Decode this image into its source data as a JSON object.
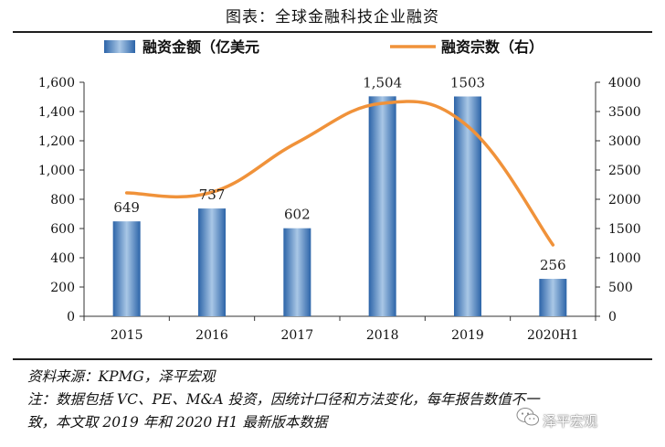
{
  "figure_title": "图表：全球金融科技企业融资",
  "chart_data": {
    "type": "bar",
    "categories": [
      "2015",
      "2016",
      "2017",
      "2018",
      "2019",
      "2020H1"
    ],
    "series": [
      {
        "name": "融资金额（亿美元",
        "type": "bar",
        "axis": "left",
        "values": [
          649,
          737,
          602,
          1504,
          1503,
          256
        ],
        "labels": [
          "649",
          "737",
          "602",
          "1,504",
          "1503",
          "256"
        ],
        "color": "#3f7fbf"
      },
      {
        "name": "融资宗数（右）",
        "type": "line",
        "axis": "right",
        "values": [
          2110,
          2120,
          2970,
          3640,
          3250,
          1220
        ],
        "color": "#f0923a"
      }
    ],
    "left_axis": {
      "ylim": [
        0,
        1600
      ],
      "ticks": [
        "0",
        "200",
        "400",
        "600",
        "800",
        "1,000",
        "1,200",
        "1,400",
        "1,600"
      ]
    },
    "right_axis": {
      "ylim": [
        0,
        4000
      ],
      "ticks": [
        "0",
        "500",
        "1000",
        "1500",
        "2000",
        "2500",
        "3000",
        "3500",
        "4000"
      ]
    },
    "legend_position": "top",
    "grid": false
  },
  "notes": {
    "source": "资料来源：KPMG，泽平宏观",
    "note_line1": "注：数据包括 VC、PE、M&A 投资，因统计口径和方法变化，每年报告数值不一",
    "note_line2": "致，本文取 2019 年和 2020 H1 最新版本数据"
  },
  "watermark": "泽平宏观",
  "icons": {
    "watermark": "wechat-icon"
  }
}
